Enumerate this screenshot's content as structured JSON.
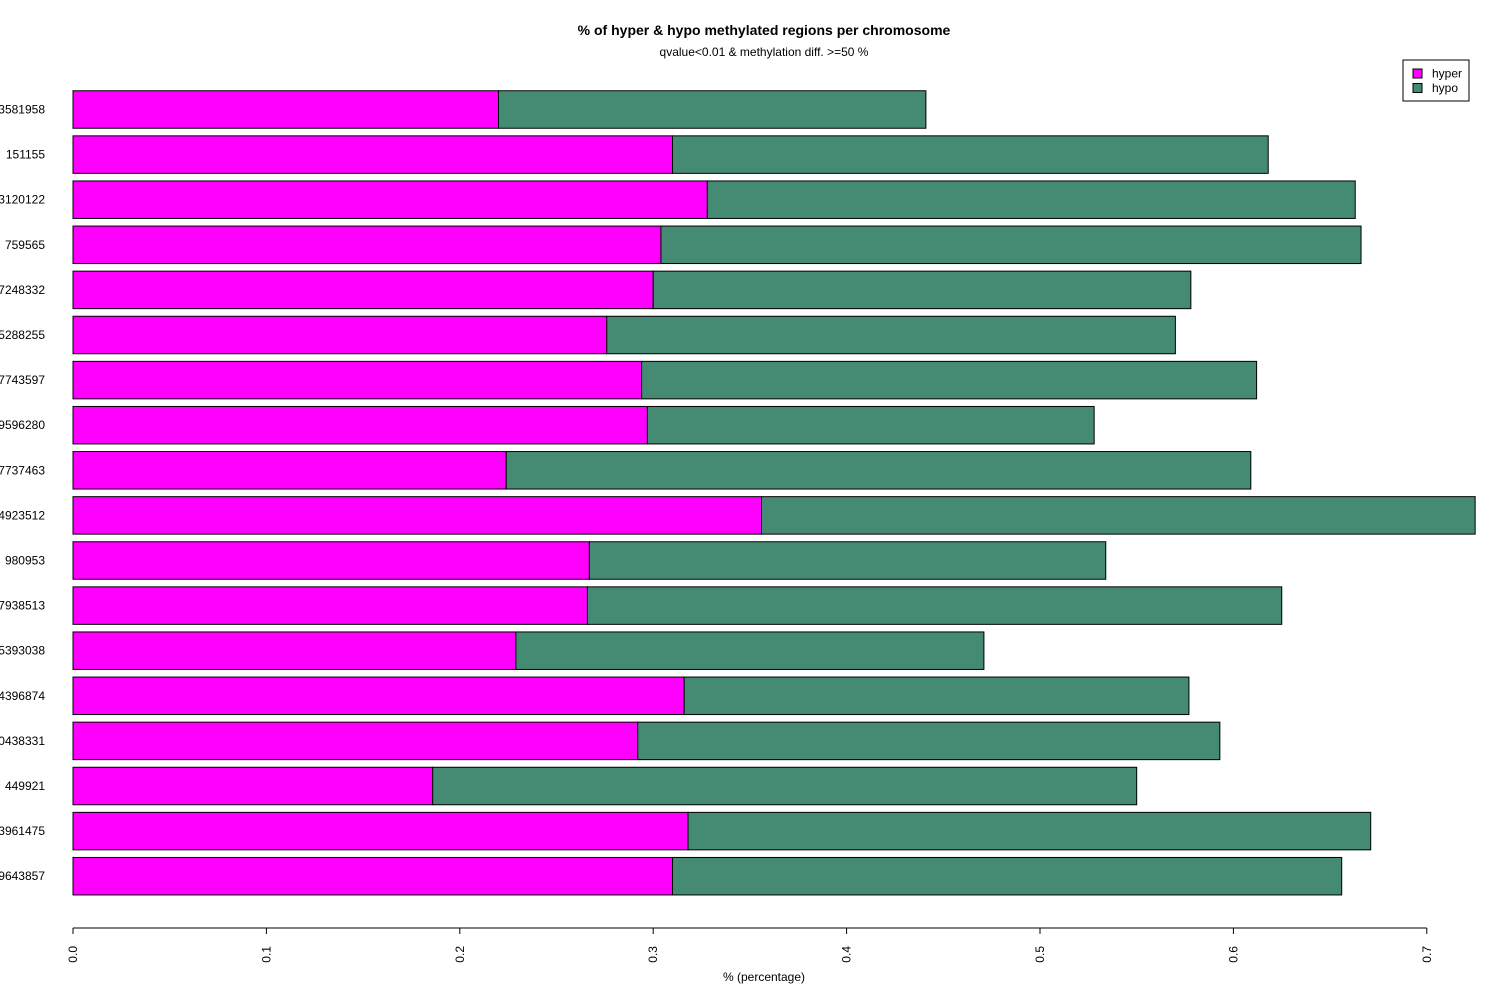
{
  "chart_data": {
    "type": "bar",
    "orientation": "horizontal",
    "stacked": true,
    "title": "% of hyper & hypo methylated regions per chromosome",
    "subtitle": "qvalue<0.01 & methylation diff. >=50 %",
    "xlabel": "% (percentage)",
    "ylabel": "",
    "xlim": [
      0,
      0.72
    ],
    "x_ticks": [
      "0.0",
      "0.1",
      "0.2",
      "0.3",
      "0.4",
      "0.5",
      "0.6",
      "0.7"
    ],
    "x_tick_values": [
      0.0,
      0.1,
      0.2,
      0.3,
      0.4,
      0.5,
      0.6,
      0.7
    ],
    "categories": [
      "3581958",
      "151155",
      "3120122",
      "759565",
      "7248332",
      "5288255",
      "7743597",
      "9596280",
      "7737463",
      "4923512",
      "980953",
      "7938513",
      "5393038",
      "4396874",
      "0438331",
      "449921",
      "3961475",
      "9643857"
    ],
    "series": [
      {
        "name": "hyper",
        "color": "#ff00ff",
        "values": [
          0.22,
          0.31,
          0.328,
          0.304,
          0.3,
          0.276,
          0.294,
          0.297,
          0.224,
          0.356,
          0.267,
          0.266,
          0.229,
          0.316,
          0.292,
          0.186,
          0.318,
          0.31
        ]
      },
      {
        "name": "hypo",
        "color": "#458b74",
        "values": [
          0.221,
          0.308,
          0.335,
          0.362,
          0.278,
          0.294,
          0.318,
          0.231,
          0.385,
          0.369,
          0.267,
          0.359,
          0.242,
          0.261,
          0.301,
          0.364,
          0.353,
          0.346
        ]
      }
    ],
    "legend": {
      "position": "top-right",
      "entries": [
        "hyper",
        "hypo"
      ]
    },
    "grid": false
  }
}
